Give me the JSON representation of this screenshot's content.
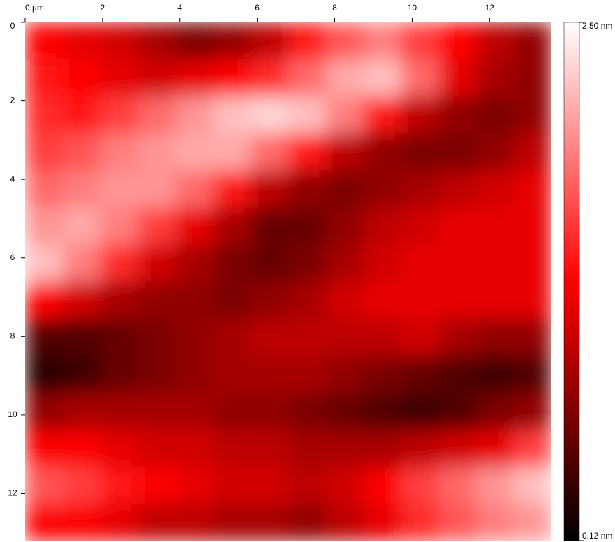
{
  "chart_data": {
    "type": "heatmap",
    "colors": [
      "#000000",
      "#ff0000",
      "#ffffff"
    ],
    "xlim": [
      0,
      13.6
    ],
    "ylim": [
      0,
      13.2
    ],
    "xticks": [
      {
        "value": 0,
        "label": "0 µm"
      },
      2,
      4,
      6,
      8,
      10,
      12
    ],
    "yticks": [
      0,
      2,
      4,
      6,
      8,
      10,
      12
    ],
    "zlim": [
      0.12,
      2.5
    ],
    "zticks": [
      {
        "value": 2.5,
        "label": "2.50 nm"
      },
      {
        "value": 0.12,
        "label": "0.12 nm"
      }
    ],
    "values": [
      [
        1.3,
        1.2,
        1.1,
        0.9,
        0.7,
        0.8,
        1.0,
        1.4,
        1.7,
        1.9,
        1.6,
        1.3,
        1.0,
        0.8
      ],
      [
        1.4,
        1.3,
        1.2,
        1.1,
        1.2,
        1.3,
        1.5,
        1.8,
        2.1,
        2.2,
        1.8,
        1.2,
        0.9,
        0.8
      ],
      [
        1.5,
        1.4,
        1.6,
        1.8,
        2.0,
        2.2,
        2.3,
        2.2,
        1.9,
        1.4,
        1.0,
        0.8,
        0.7,
        0.8
      ],
      [
        1.6,
        1.7,
        1.9,
        2.0,
        2.1,
        2.1,
        1.8,
        1.4,
        1.0,
        0.8,
        0.7,
        0.7,
        0.8,
        1.0
      ],
      [
        1.8,
        1.9,
        2.0,
        2.0,
        1.8,
        1.4,
        1.0,
        0.8,
        0.7,
        0.8,
        0.9,
        1.0,
        1.1,
        1.2
      ],
      [
        2.0,
        2.1,
        1.9,
        1.6,
        1.2,
        0.9,
        0.6,
        0.6,
        0.8,
        1.0,
        1.1,
        1.2,
        1.2,
        1.2
      ],
      [
        2.2,
        1.9,
        1.5,
        1.1,
        0.9,
        0.7,
        0.6,
        0.7,
        0.9,
        1.1,
        1.2,
        1.2,
        1.2,
        1.2
      ],
      [
        1.3,
        1.1,
        0.9,
        0.8,
        0.8,
        0.7,
        0.8,
        0.9,
        1.1,
        1.2,
        1.2,
        1.2,
        1.2,
        1.2
      ],
      [
        0.5,
        0.5,
        0.6,
        0.7,
        0.8,
        0.9,
        1.0,
        1.0,
        1.0,
        1.0,
        1.1,
        0.9,
        0.8,
        0.8
      ],
      [
        0.3,
        0.4,
        0.6,
        0.7,
        0.8,
        0.9,
        0.9,
        0.9,
        0.8,
        0.7,
        0.6,
        0.5,
        0.4,
        0.5
      ],
      [
        0.8,
        0.9,
        0.9,
        0.9,
        0.9,
        0.8,
        0.8,
        0.7,
        0.6,
        0.5,
        0.4,
        0.5,
        0.7,
        0.8
      ],
      [
        1.3,
        1.3,
        1.2,
        1.1,
        1.1,
        1.0,
        1.0,
        0.9,
        0.9,
        0.9,
        1.0,
        1.1,
        1.2,
        1.6
      ],
      [
        1.7,
        1.6,
        1.4,
        1.3,
        1.2,
        1.1,
        1.1,
        1.0,
        1.1,
        1.3,
        1.6,
        1.8,
        2.0,
        2.2
      ],
      [
        1.3,
        1.3,
        1.2,
        1.0,
        1.0,
        0.9,
        0.9,
        0.8,
        1.0,
        1.2,
        1.5,
        1.7,
        1.9,
        2.0
      ]
    ]
  }
}
